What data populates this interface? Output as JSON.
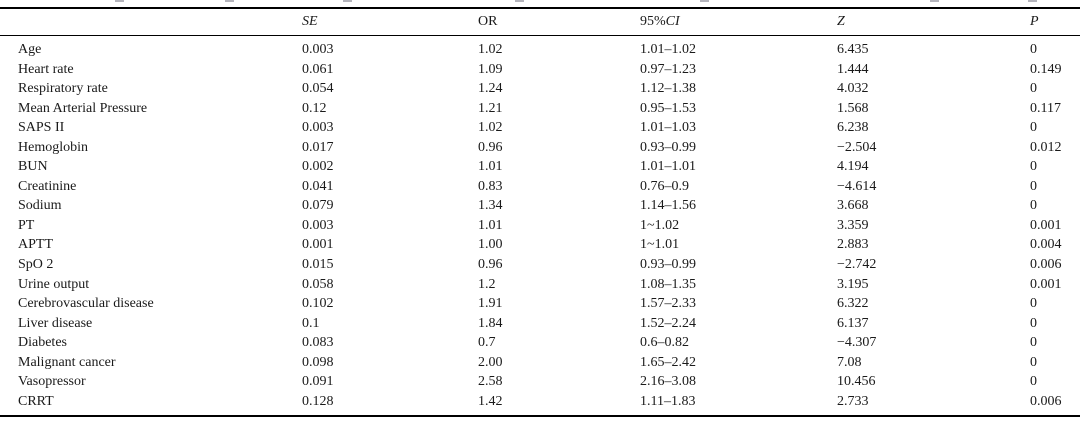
{
  "table": {
    "header": {
      "variable": "",
      "se": "SE",
      "or": "OR",
      "ci_prefix": "95%",
      "ci": "CI",
      "z": "Z",
      "p": "P"
    },
    "rows": [
      {
        "variable": "Age",
        "se": "0.003",
        "or": "1.02",
        "ci": "1.01–1.02",
        "z": "6.435",
        "p": "0"
      },
      {
        "variable": "Heart rate",
        "se": "0.061",
        "or": "1.09",
        "ci": "0.97–1.23",
        "z": "1.444",
        "p": "0.149"
      },
      {
        "variable": "Respiratory rate",
        "se": "0.054",
        "or": "1.24",
        "ci": "1.12–1.38",
        "z": "4.032",
        "p": "0"
      },
      {
        "variable": "Mean Arterial Pressure",
        "se": "0.12",
        "or": "1.21",
        "ci": "0.95–1.53",
        "z": "1.568",
        "p": "0.117"
      },
      {
        "variable": "SAPS II",
        "se": "0.003",
        "or": "1.02",
        "ci": "1.01–1.03",
        "z": "6.238",
        "p": "0"
      },
      {
        "variable": "Hemoglobin",
        "se": "0.017",
        "or": "0.96",
        "ci": "0.93–0.99",
        "z": "−2.504",
        "p": "0.012"
      },
      {
        "variable": "BUN",
        "se": "0.002",
        "or": "1.01",
        "ci": "1.01–1.01",
        "z": "4.194",
        "p": "0"
      },
      {
        "variable": "Creatinine",
        "se": "0.041",
        "or": "0.83",
        "ci": "0.76–0.9",
        "z": "−4.614",
        "p": "0"
      },
      {
        "variable": "Sodium",
        "se": "0.079",
        "or": "1.34",
        "ci": "1.14–1.56",
        "z": "3.668",
        "p": "0"
      },
      {
        "variable": "PT",
        "se": "0.003",
        "or": "1.01",
        "ci": "1~1.02",
        "z": "3.359",
        "p": "0.001"
      },
      {
        "variable": "APTT",
        "se": "0.001",
        "or": "1.00",
        "ci": "1~1.01",
        "z": "2.883",
        "p": "0.004"
      },
      {
        "variable": "SpO 2",
        "se": "0.015",
        "or": "0.96",
        "ci": "0.93–0.99",
        "z": "−2.742",
        "p": "0.006"
      },
      {
        "variable": "Urine output",
        "se": "0.058",
        "or": "1.2",
        "ci": "1.08–1.35",
        "z": "3.195",
        "p": "0.001"
      },
      {
        "variable": "Cerebrovascular disease",
        "se": "0.102",
        "or": "1.91",
        "ci": "1.57–2.33",
        "z": "6.322",
        "p": "0"
      },
      {
        "variable": "Liver disease",
        "se": "0.1",
        "or": "1.84",
        "ci": "1.52–2.24",
        "z": "6.137",
        "p": "0"
      },
      {
        "variable": "Diabetes",
        "se": "0.083",
        "or": "0.7",
        "ci": "0.6–0.82",
        "z": "−4.307",
        "p": "0"
      },
      {
        "variable": "Malignant cancer",
        "se": "0.098",
        "or": "2.00",
        "ci": "1.65–2.42",
        "z": "7.08",
        "p": "0"
      },
      {
        "variable": "Vasopressor",
        "se": "0.091",
        "or": "2.58",
        "ci": "2.16–3.08",
        "z": "10.456",
        "p": "0"
      },
      {
        "variable": "CRRT",
        "se": "0.128",
        "or": "1.42",
        "ci": "1.11–1.83",
        "z": "2.733",
        "p": "0.006"
      }
    ]
  }
}
